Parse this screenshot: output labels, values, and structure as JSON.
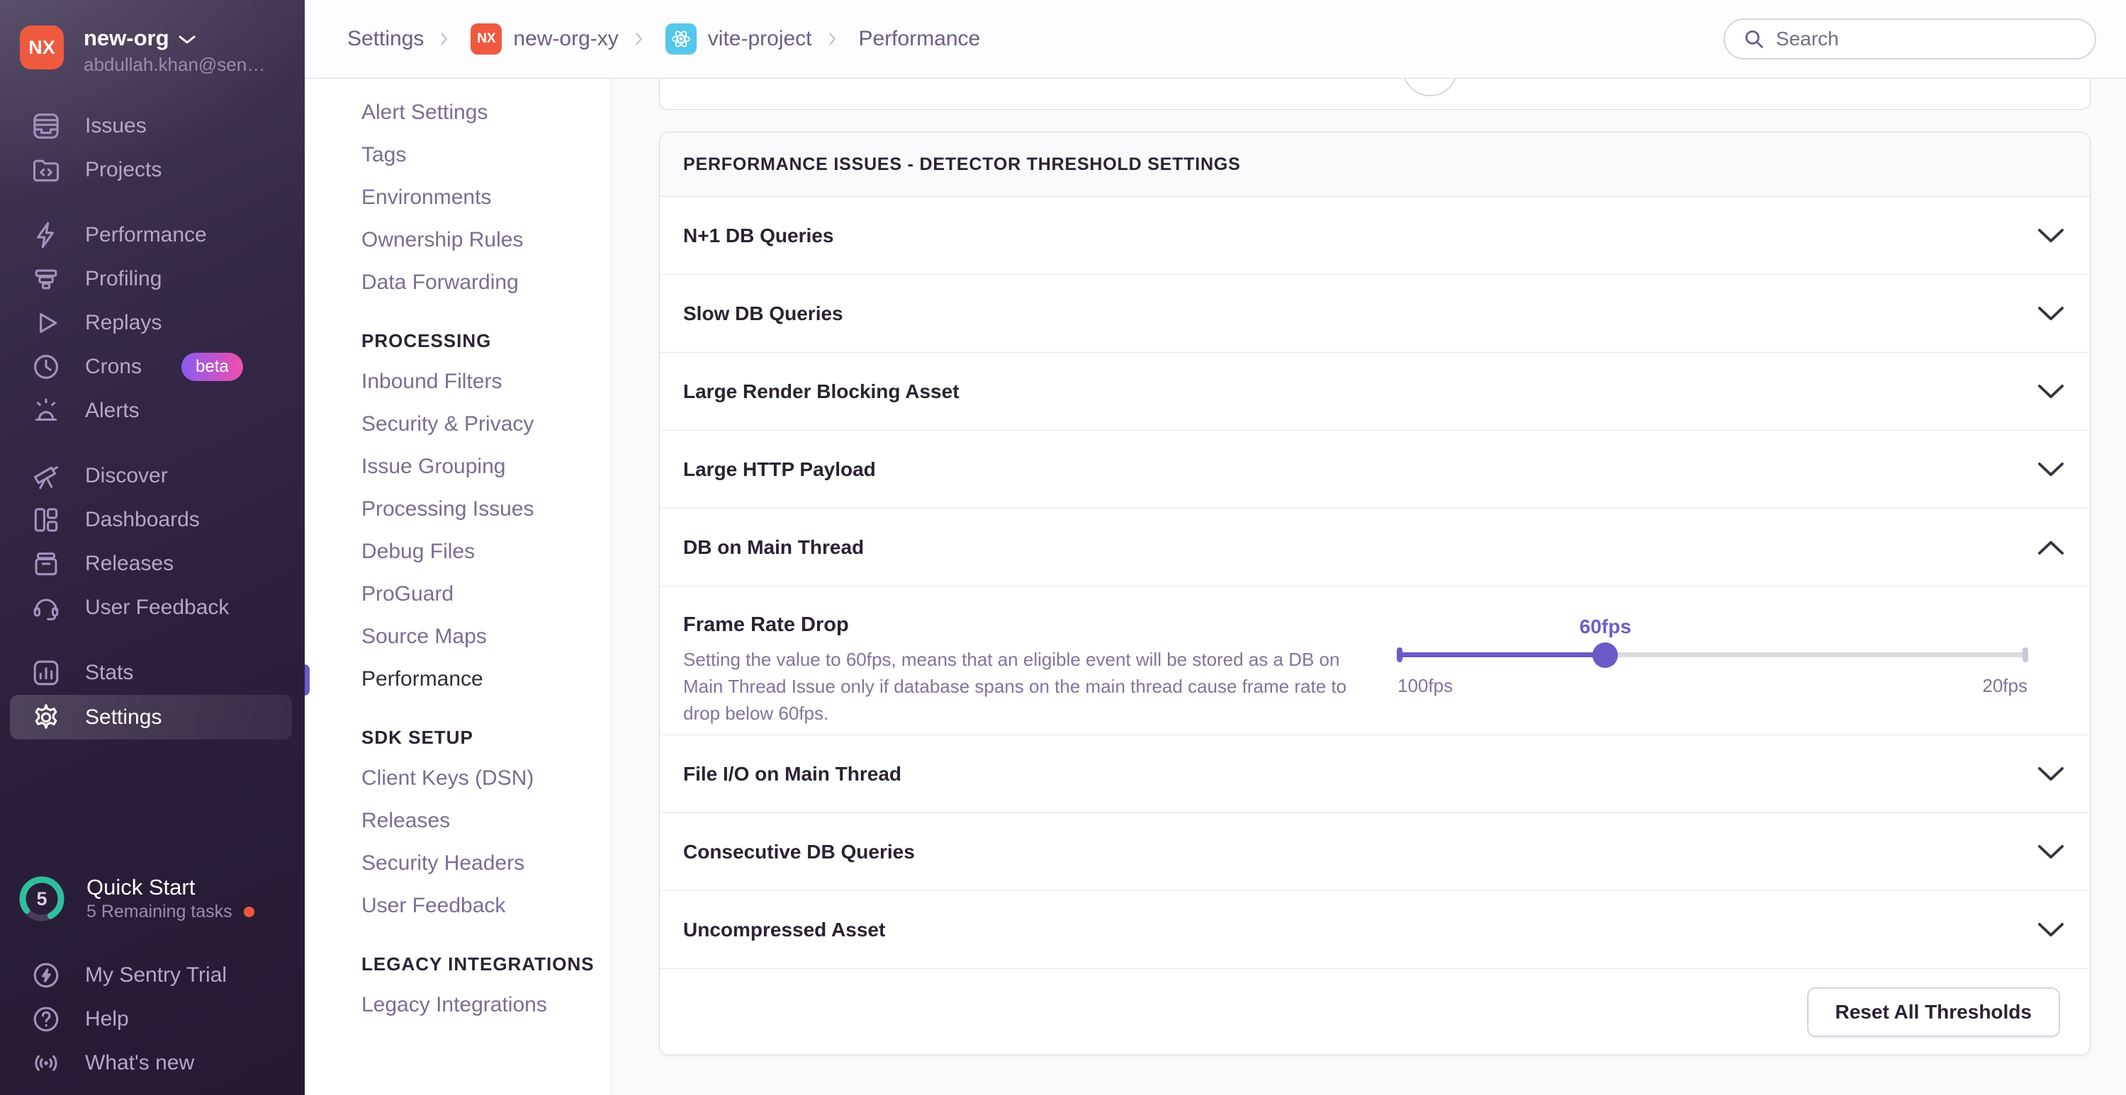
{
  "colors": {
    "accent": "#6c5fc7",
    "org_avatar": "#ee5a40",
    "project_badge": "#54c7ec",
    "beta_gradient_start": "#8b5cf0",
    "beta_gradient_end": "#ef4fab",
    "quickstart_ring": "#2fbf9c",
    "notification_dot": "#f1563f"
  },
  "primary_sidebar": {
    "org": {
      "initials": "NX",
      "name": "new-org",
      "email": "abdullah.khan@sen…"
    },
    "groups": [
      {
        "items": [
          {
            "label": "Issues",
            "icon": "issues"
          },
          {
            "label": "Projects",
            "icon": "projects"
          }
        ]
      },
      {
        "items": [
          {
            "label": "Performance",
            "icon": "performance"
          },
          {
            "label": "Profiling",
            "icon": "profiling"
          },
          {
            "label": "Replays",
            "icon": "replays"
          },
          {
            "label": "Crons",
            "icon": "crons",
            "badge": "beta"
          },
          {
            "label": "Alerts",
            "icon": "alerts"
          }
        ]
      },
      {
        "items": [
          {
            "label": "Discover",
            "icon": "discover"
          },
          {
            "label": "Dashboards",
            "icon": "dashboards"
          },
          {
            "label": "Releases",
            "icon": "releases"
          },
          {
            "label": "User Feedback",
            "icon": "user-feedback"
          }
        ]
      },
      {
        "items": [
          {
            "label": "Stats",
            "icon": "stats"
          },
          {
            "label": "Settings",
            "icon": "settings",
            "active": true
          }
        ]
      }
    ],
    "quick_start": {
      "count": "5",
      "label": "Quick Start",
      "subtitle": "5 Remaining tasks",
      "progress_percent": 78
    },
    "footer_items": [
      {
        "label": "My Sentry Trial",
        "icon": "trial"
      },
      {
        "label": "Help",
        "icon": "help"
      },
      {
        "label": "What's new",
        "icon": "whats-new"
      }
    ]
  },
  "settings_sidebar": {
    "sections": [
      {
        "header": "",
        "items": [
          {
            "label": "Alert Settings"
          },
          {
            "label": "Tags"
          },
          {
            "label": "Environments"
          },
          {
            "label": "Ownership Rules"
          },
          {
            "label": "Data Forwarding"
          }
        ]
      },
      {
        "header": "PROCESSING",
        "items": [
          {
            "label": "Inbound Filters"
          },
          {
            "label": "Security & Privacy"
          },
          {
            "label": "Issue Grouping"
          },
          {
            "label": "Processing Issues"
          },
          {
            "label": "Debug Files"
          },
          {
            "label": "ProGuard"
          },
          {
            "label": "Source Maps"
          },
          {
            "label": "Performance",
            "active": true
          }
        ]
      },
      {
        "header": "SDK SETUP",
        "items": [
          {
            "label": "Client Keys (DSN)"
          },
          {
            "label": "Releases"
          },
          {
            "label": "Security Headers"
          },
          {
            "label": "User Feedback"
          }
        ]
      },
      {
        "header": "LEGACY INTEGRATIONS",
        "items": [
          {
            "label": "Legacy Integrations"
          }
        ]
      }
    ]
  },
  "header": {
    "breadcrumbs": [
      {
        "label": "Settings"
      },
      {
        "label": "new-org-xy",
        "badge_text": "NX",
        "badge_type": "org"
      },
      {
        "label": "vite-project",
        "badge_type": "project"
      },
      {
        "label": "Performance"
      }
    ],
    "search_placeholder": "Search"
  },
  "main": {
    "panel_title": "PERFORMANCE ISSUES - DETECTOR THRESHOLD SETTINGS",
    "rows": [
      {
        "label": "N+1 DB Queries",
        "expanded": false
      },
      {
        "label": "Slow DB Queries",
        "expanded": false
      },
      {
        "label": "Large Render Blocking Asset",
        "expanded": false
      },
      {
        "label": "Large HTTP Payload",
        "expanded": false
      },
      {
        "label": "DB on Main Thread",
        "expanded": true
      },
      {
        "label": "File I/O on Main Thread",
        "expanded": false
      },
      {
        "label": "Consecutive DB Queries",
        "expanded": false
      },
      {
        "label": "Uncompressed Asset",
        "expanded": false
      }
    ],
    "frame_rate": {
      "label": "Frame Rate Drop",
      "description": "Setting the value to 60fps, means that an eligible event will be stored as a DB on Main Thread Issue only if database spans on the main thread cause frame rate to drop below 60fps.",
      "value_label": "60fps",
      "min_label": "100fps",
      "max_label": "20fps",
      "percent": 33
    },
    "footer_button": "Reset All Thresholds"
  }
}
